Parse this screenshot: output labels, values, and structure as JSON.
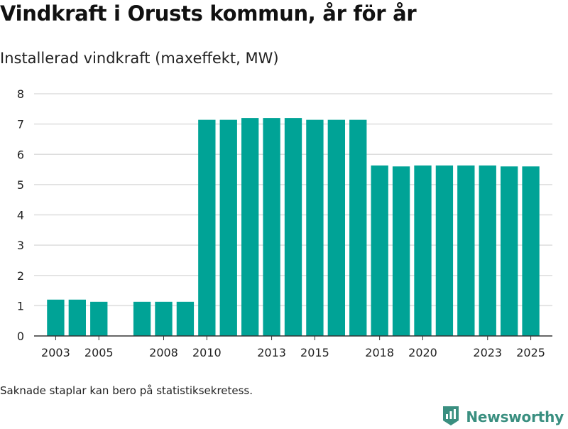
{
  "header": {
    "title": "Vindkraft i Orusts kommun, år för år",
    "subtitle": "Installerad vindkraft (maxeffekt, MW)"
  },
  "footer": {
    "note": "Saknade staplar kan bero på statistiksekretess.",
    "brand": "Newsworthy"
  },
  "colors": {
    "bar": "#00a396",
    "grid": "#dddddd",
    "axis": "#333333",
    "brand": "#3a8f80"
  },
  "chart_data": {
    "type": "bar",
    "xlabel": "",
    "ylabel": "",
    "ylim": [
      0,
      8
    ],
    "yticks": [
      0,
      1,
      2,
      3,
      4,
      5,
      6,
      7,
      8
    ],
    "xlim": [
      2002,
      2026
    ],
    "xtick_labels": [
      "2003",
      "2005",
      "2008",
      "2010",
      "2013",
      "2015",
      "2018",
      "2020",
      "2023",
      "2025"
    ],
    "grid": true,
    "legend": "none",
    "x": [
      2003,
      2004,
      2005,
      2006,
      2007,
      2008,
      2009,
      2010,
      2011,
      2012,
      2013,
      2014,
      2015,
      2016,
      2017,
      2018,
      2019,
      2020,
      2021,
      2022,
      2023,
      2024,
      2025
    ],
    "values": [
      1.2,
      1.2,
      1.13,
      null,
      1.13,
      1.13,
      1.13,
      7.14,
      7.14,
      7.2,
      7.2,
      7.2,
      7.14,
      7.14,
      7.14,
      5.63,
      5.6,
      5.63,
      5.63,
      5.63,
      5.63,
      5.6,
      5.6
    ]
  }
}
